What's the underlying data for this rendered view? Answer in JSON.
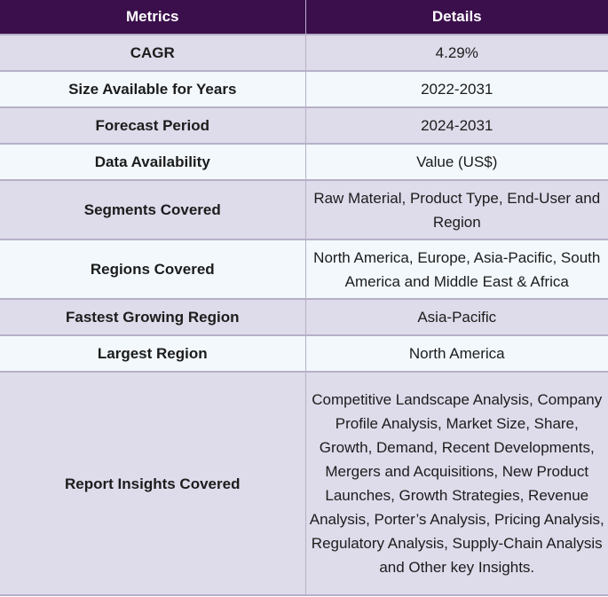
{
  "table": {
    "headers": [
      "Metrics",
      "Details"
    ],
    "rows": [
      {
        "metric": "CAGR",
        "detail": "4.29%"
      },
      {
        "metric": "Size Available for Years",
        "detail": "2022-2031"
      },
      {
        "metric": "Forecast Period",
        "detail": "2024-2031"
      },
      {
        "metric": "Data Availability",
        "detail": "Value (US$)"
      },
      {
        "metric": "Segments Covered",
        "detail": "Raw Material, Product Type, End-User and Region"
      },
      {
        "metric": "Regions Covered",
        "detail": "North America, Europe, Asia-Pacific, South America and Middle East & Africa"
      },
      {
        "metric": "Fastest Growing Region",
        "detail": "Asia-Pacific"
      },
      {
        "metric": "Largest Region",
        "detail": "North America"
      },
      {
        "metric": "Report Insights Covered",
        "detail": "Competitive Landscape Analysis, Company Profile Analysis, Market Size, Share, Growth, Demand, Recent Developments, Mergers and Acquisitions, New Product Launches, Growth Strategies, Revenue Analysis, Porter’s Analysis, Pricing Analysis, Regulatory Analysis, Supply-Chain Analysis and Other key Insights."
      }
    ]
  },
  "colors": {
    "header_bg": "#3b0f4c",
    "row_odd": "#dedbea",
    "row_even": "#f2f8fc",
    "border": "#b7b0c8"
  }
}
